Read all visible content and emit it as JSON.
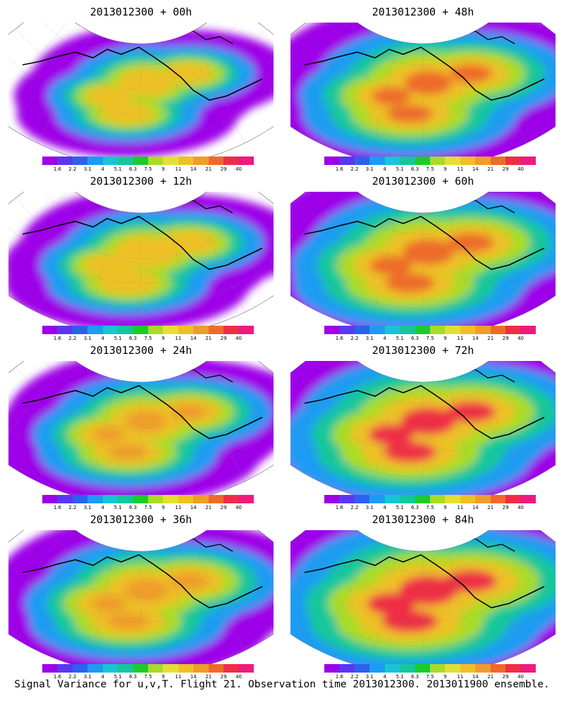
{
  "caption": "Signal Variance for u,v,T. Flight 21. Observation time 2013012300. 2013011900 ensemble.",
  "colorbar": {
    "labels": [
      "1.6",
      "2.2",
      "3.1",
      "4",
      "5.1",
      "6.3",
      "7.5",
      "9",
      "11",
      "14",
      "21",
      "29",
      "40"
    ],
    "colors": [
      "#9d00e8",
      "#5b36f0",
      "#2b62ec",
      "#1b9cf2",
      "#17c6d2",
      "#14c79b",
      "#1bcc2a",
      "#a8dc28",
      "#e5df35",
      "#edc126",
      "#ee9d2a",
      "#ee6a2b",
      "#ee2e45",
      "#ef1a7d"
    ]
  },
  "panels": [
    {
      "title": "2013012300 + 00h",
      "lead_hours": 0
    },
    {
      "title": "2013012300 + 48h",
      "lead_hours": 48
    },
    {
      "title": "2013012300 + 12h",
      "lead_hours": 12
    },
    {
      "title": "2013012300 + 60h",
      "lead_hours": 60
    },
    {
      "title": "2013012300 + 24h",
      "lead_hours": 24
    },
    {
      "title": "2013012300 + 72h",
      "lead_hours": 72
    },
    {
      "title": "2013012300 + 36h",
      "lead_hours": 36
    },
    {
      "title": "2013012300 + 84h",
      "lead_hours": 84
    }
  ]
}
